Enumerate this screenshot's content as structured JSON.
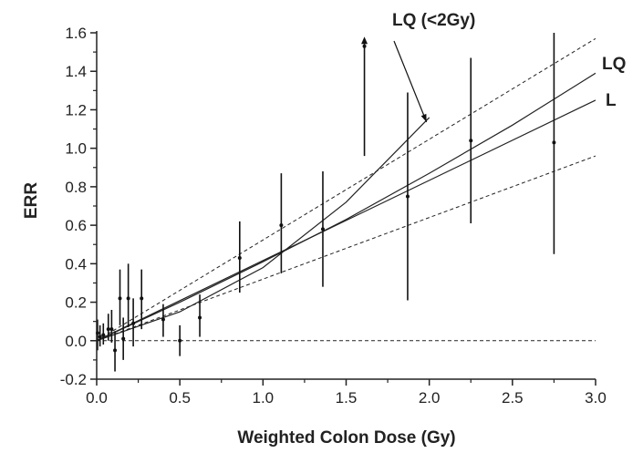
{
  "chart_data": {
    "type": "scatter",
    "title": "",
    "xlabel": "Weighted Colon Dose (Gy)",
    "ylabel": "ERR",
    "xlim": [
      0.0,
      3.0
    ],
    "ylim": [
      -0.2,
      1.6
    ],
    "x_ticks": [
      "0.0",
      "0.5",
      "1.0",
      "1.5",
      "2.0",
      "2.5",
      "3.0"
    ],
    "y_ticks": [
      "-0.2",
      "0.0",
      "0.2",
      "0.4",
      "0.6",
      "0.8",
      "1.0",
      "1.2",
      "1.4",
      "1.6"
    ],
    "grid": false,
    "points": [
      {
        "x": 0.005,
        "y": 0.04,
        "lo": -0.05,
        "hi": 0.11
      },
      {
        "x": 0.02,
        "y": 0.02,
        "lo": -0.03,
        "hi": 0.08
      },
      {
        "x": 0.04,
        "y": 0.03,
        "lo": -0.02,
        "hi": 0.09
      },
      {
        "x": 0.07,
        "y": 0.06,
        "lo": 0.0,
        "hi": 0.14
      },
      {
        "x": 0.09,
        "y": 0.06,
        "lo": -0.01,
        "hi": 0.16
      },
      {
        "x": 0.11,
        "y": -0.05,
        "lo": -0.16,
        "hi": 0.05
      },
      {
        "x": 0.14,
        "y": 0.22,
        "lo": 0.08,
        "hi": 0.37
      },
      {
        "x": 0.16,
        "y": 0.01,
        "lo": -0.1,
        "hi": 0.12
      },
      {
        "x": 0.19,
        "y": 0.22,
        "lo": 0.07,
        "hi": 0.4
      },
      {
        "x": 0.22,
        "y": 0.09,
        "lo": -0.03,
        "hi": 0.22
      },
      {
        "x": 0.27,
        "y": 0.22,
        "lo": 0.06,
        "hi": 0.37
      },
      {
        "x": 0.4,
        "y": 0.11,
        "lo": 0.02,
        "hi": 0.19
      },
      {
        "x": 0.5,
        "y": 0.0,
        "lo": -0.08,
        "hi": 0.08
      },
      {
        "x": 0.62,
        "y": 0.12,
        "lo": 0.02,
        "hi": 0.24
      },
      {
        "x": 0.86,
        "y": 0.43,
        "lo": 0.25,
        "hi": 0.62
      },
      {
        "x": 1.11,
        "y": 0.6,
        "lo": 0.35,
        "hi": 0.87
      },
      {
        "x": 1.36,
        "y": 0.58,
        "lo": 0.28,
        "hi": 0.88
      },
      {
        "x": 1.61,
        "y": 1.53,
        "lo": 0.96,
        "hi": 1.58,
        "arrow_up": true
      },
      {
        "x": 1.87,
        "y": 0.75,
        "lo": 0.21,
        "hi": 1.29
      },
      {
        "x": 2.25,
        "y": 1.04,
        "lo": 0.61,
        "hi": 1.47
      },
      {
        "x": 2.75,
        "y": 1.03,
        "lo": 0.45,
        "hi": 1.6
      }
    ],
    "curves": [
      {
        "label": "L",
        "x": [
          0,
          3.0
        ],
        "y": [
          0,
          1.25
        ],
        "dash": false
      },
      {
        "label": "LQ",
        "x": [
          0,
          0.5,
          1.0,
          1.5,
          2.0,
          2.5,
          3.0
        ],
        "y": [
          0,
          0.2,
          0.41,
          0.63,
          0.87,
          1.12,
          1.39
        ],
        "dash": false
      },
      {
        "label": "LQ (<2Gy)",
        "x": [
          0,
          0.5,
          1.0,
          1.5,
          2.0
        ],
        "y": [
          0,
          0.15,
          0.38,
          0.72,
          1.16
        ],
        "dash": false
      },
      {
        "label": "",
        "x": [
          0,
          3.0
        ],
        "y": [
          0,
          1.57
        ],
        "dash": true
      },
      {
        "label": "",
        "x": [
          0,
          3.0
        ],
        "y": [
          0,
          0.96
        ],
        "dash": true
      },
      {
        "label": "",
        "x": [
          0,
          3.0
        ],
        "y": [
          0,
          0
        ],
        "dash": true
      }
    ]
  }
}
